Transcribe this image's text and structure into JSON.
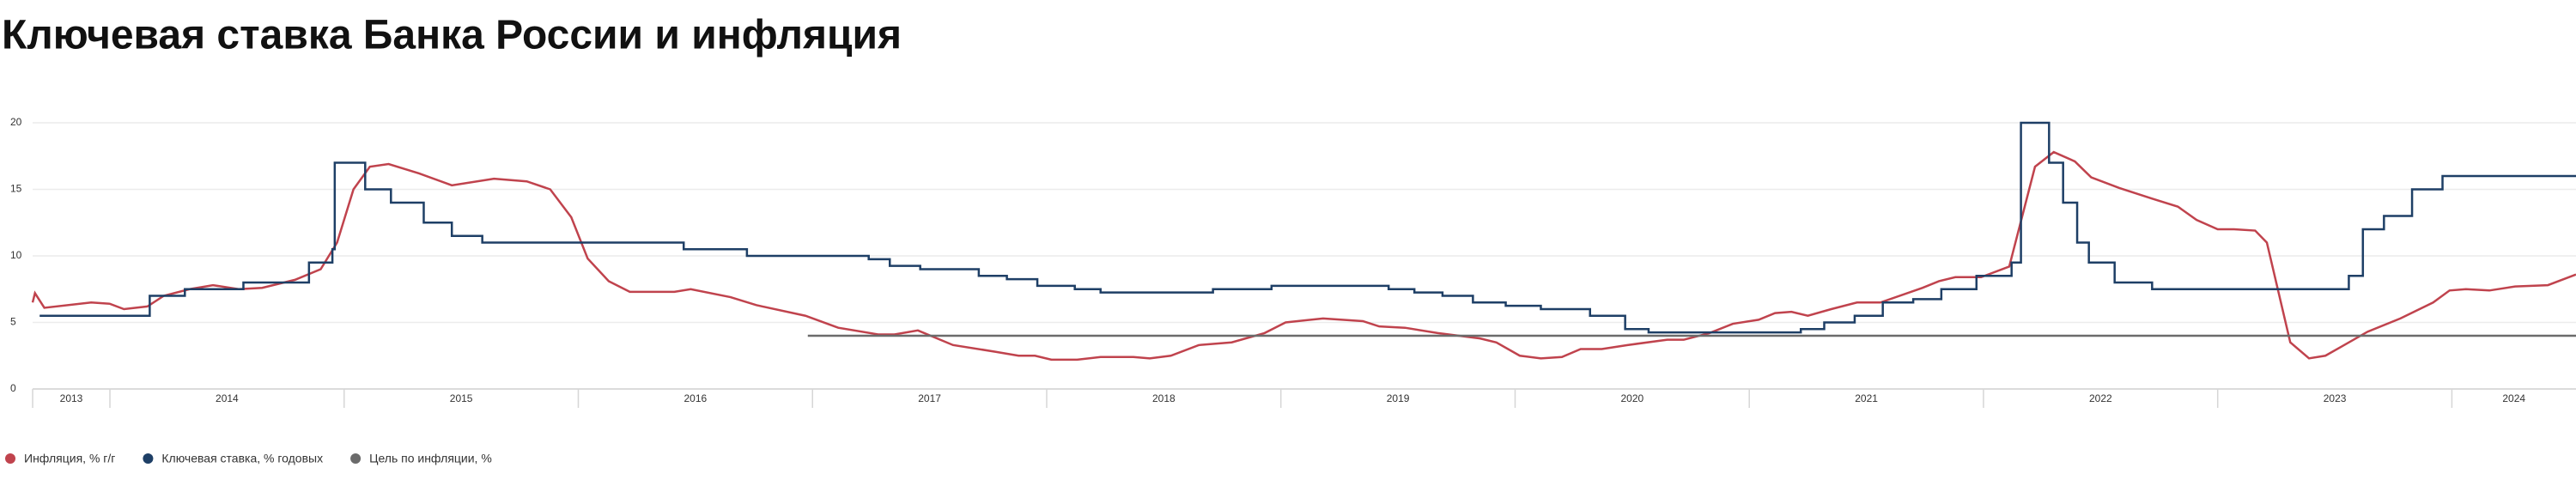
{
  "chart_data": {
    "type": "line",
    "title": "Ключевая ставка Банка России и инфляция",
    "xlim": [
      2013.67,
      2024.53
    ],
    "xticks": [
      2013,
      2014,
      2015,
      2016,
      2017,
      2018,
      2019,
      2020,
      2021,
      2022,
      2023,
      2024
    ],
    "ylim": [
      0,
      20
    ],
    "yticks": [
      0,
      5,
      10,
      15,
      20
    ],
    "grid": true,
    "legend": "bottom",
    "series": [
      {
        "name": "Инфляция, % г/г",
        "color": "#c0434d",
        "step": false,
        "x": [
          2013.67,
          2013.68,
          2013.72,
          2013.92,
          2014.0,
          2014.06,
          2014.16,
          2014.23,
          2014.34,
          2014.44,
          2014.55,
          2014.65,
          2014.79,
          2014.9,
          2014.97,
          2015.04,
          2015.11,
          2015.19,
          2015.32,
          2015.46,
          2015.64,
          2015.78,
          2015.88,
          2015.97,
          2016.04,
          2016.13,
          2016.22,
          2016.41,
          2016.48,
          2016.65,
          2016.76,
          2016.97,
          2017.11,
          2017.28,
          2017.35,
          2017.45,
          2017.6,
          2017.78,
          2017.88,
          2017.95,
          2018.02,
          2018.13,
          2018.23,
          2018.37,
          2018.44,
          2018.53,
          2018.65,
          2018.79,
          2018.93,
          2019.02,
          2019.18,
          2019.35,
          2019.42,
          2019.53,
          2019.67,
          2019.85,
          2019.92,
          2020.02,
          2020.11,
          2020.2,
          2020.28,
          2020.37,
          2020.48,
          2020.65,
          2020.72,
          2020.83,
          2020.93,
          2021.04,
          2021.11,
          2021.18,
          2021.25,
          2021.35,
          2021.46,
          2021.56,
          2021.74,
          2021.81,
          2021.88,
          2021.99,
          2022.11,
          2022.22,
          2022.3,
          2022.39,
          2022.46,
          2022.58,
          2022.72,
          2022.83,
          2022.91,
          2023.0,
          2023.07,
          2023.16,
          2023.21,
          2023.31,
          2023.39,
          2023.46,
          2023.53,
          2023.64,
          2023.78,
          2023.92,
          2023.99,
          2024.06,
          2024.16,
          2024.27,
          2024.41,
          2024.53
        ],
        "values": [
          6.5,
          7.2,
          6.1,
          6.5,
          6.4,
          6.0,
          6.2,
          7.0,
          7.5,
          7.8,
          7.5,
          7.6,
          8.2,
          9.0,
          11.0,
          15.0,
          16.7,
          16.9,
          16.2,
          15.3,
          15.8,
          15.6,
          15.0,
          12.9,
          9.8,
          8.1,
          7.3,
          7.3,
          7.5,
          6.9,
          6.3,
          5.5,
          4.6,
          4.1,
          4.1,
          4.4,
          3.3,
          2.8,
          2.5,
          2.5,
          2.2,
          2.2,
          2.4,
          2.4,
          2.3,
          2.5,
          3.3,
          3.5,
          4.2,
          5.0,
          5.3,
          5.1,
          4.7,
          4.6,
          4.2,
          3.8,
          3.5,
          2.5,
          2.3,
          2.4,
          3.0,
          3.0,
          3.3,
          3.7,
          3.7,
          4.2,
          4.9,
          5.2,
          5.7,
          5.8,
          5.5,
          6.0,
          6.5,
          6.5,
          7.6,
          8.1,
          8.4,
          8.4,
          9.2,
          16.7,
          17.8,
          17.1,
          15.9,
          15.1,
          14.3,
          13.7,
          12.7,
          12.0,
          12.0,
          11.9,
          11.0,
          3.5,
          2.3,
          2.5,
          3.2,
          4.3,
          5.3,
          6.5,
          7.4,
          7.5,
          7.4,
          7.7,
          7.8,
          8.6
        ]
      },
      {
        "name": "Ключевая ставка, % годовых",
        "color": "#1e3f66",
        "step": true,
        "x": [
          2013.7,
          2014.17,
          2014.32,
          2014.57,
          2014.85,
          2014.95,
          2014.96,
          2015.09,
          2015.2,
          2015.34,
          2015.46,
          2015.59,
          2016.45,
          2016.72,
          2017.24,
          2017.33,
          2017.46,
          2017.71,
          2017.83,
          2017.96,
          2018.12,
          2018.23,
          2018.71,
          2018.96,
          2019.46,
          2019.57,
          2019.69,
          2019.82,
          2019.96,
          2020.11,
          2020.32,
          2020.47,
          2020.57,
          2021.22,
          2021.32,
          2021.45,
          2021.57,
          2021.7,
          2021.82,
          2021.97,
          2022.12,
          2022.16,
          2022.28,
          2022.34,
          2022.4,
          2022.45,
          2022.56,
          2022.72,
          2023.56,
          2023.62,
          2023.71,
          2023.83,
          2023.96
        ],
        "values": [
          5.5,
          7.0,
          7.5,
          8.0,
          9.5,
          10.5,
          17.0,
          15.0,
          14.0,
          12.5,
          11.5,
          11.0,
          10.5,
          10.0,
          9.75,
          9.25,
          9.0,
          8.5,
          8.25,
          7.75,
          7.5,
          7.25,
          7.5,
          7.75,
          7.5,
          7.25,
          7.0,
          6.5,
          6.25,
          6.0,
          5.5,
          4.5,
          4.25,
          4.5,
          5.0,
          5.5,
          6.5,
          6.75,
          7.5,
          8.5,
          9.5,
          20,
          17,
          14,
          11,
          9.5,
          8.0,
          7.5,
          8.5,
          12,
          13,
          15,
          16
        ]
      },
      {
        "name": "Цель по инфляции, %",
        "color": "#6b6b6b",
        "step": true,
        "x": [
          2016.98
        ],
        "values": [
          4
        ]
      }
    ]
  }
}
